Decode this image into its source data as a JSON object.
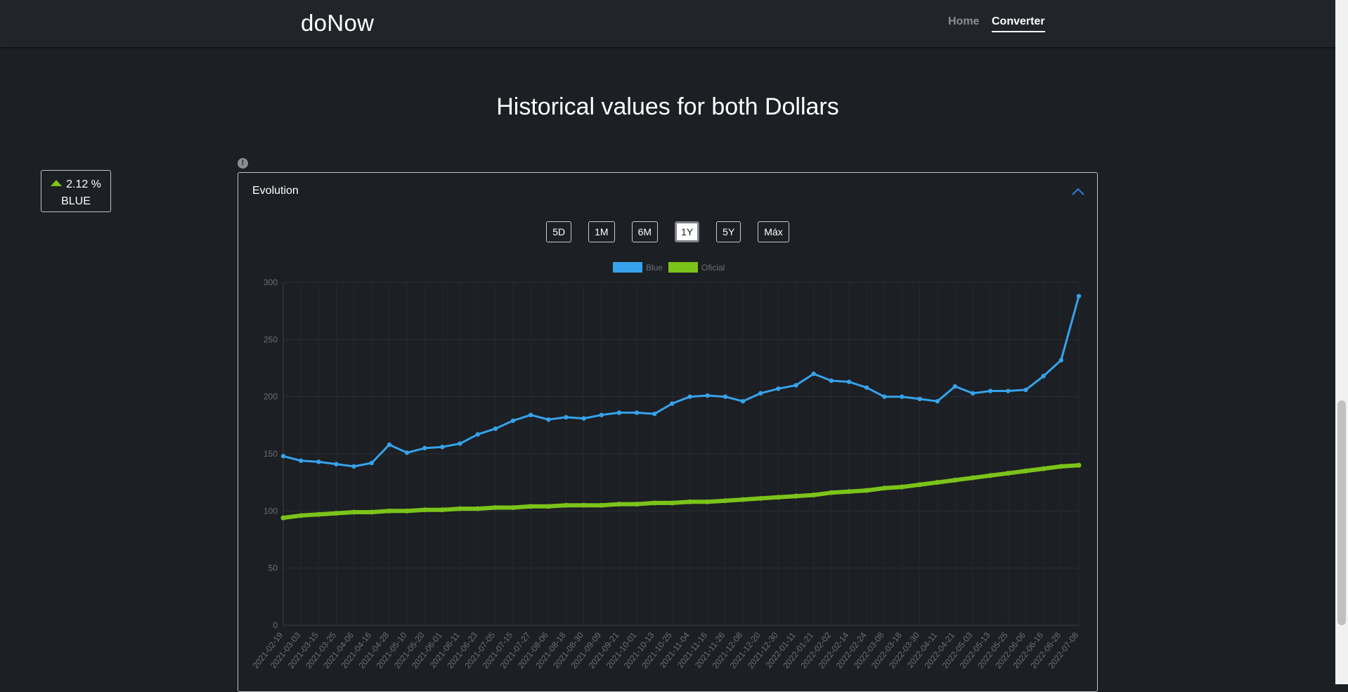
{
  "navbar": {
    "brand": "doNow",
    "links": [
      {
        "label": "Home"
      },
      {
        "label": "Converter",
        "active": true
      }
    ]
  },
  "page": {
    "title": "Historical values for both Dollars"
  },
  "change_card": {
    "percent": "2.12 %",
    "direction": "up",
    "label": "BLUE",
    "color": "#7cc31a"
  },
  "panel": {
    "title": "Evolution",
    "ranges": [
      "5D",
      "1M",
      "6M",
      "1Y",
      "5Y",
      "Máx"
    ],
    "active_range": "1Y"
  },
  "chart_data": {
    "type": "line",
    "legend_position": "top",
    "grid": true,
    "ylim": [
      0,
      300
    ],
    "yticks": [
      "0",
      "50",
      "100",
      "150",
      "200",
      "250",
      "300"
    ],
    "categories": [
      "2021-02-19",
      "2021-03-03",
      "2021-03-15",
      "2021-03-25",
      "2021-04-06",
      "2021-04-16",
      "2021-04-28",
      "2021-05-10",
      "2021-05-20",
      "2021-06-01",
      "2021-06-11",
      "2021-06-23",
      "2021-07-05",
      "2021-07-15",
      "2021-07-27",
      "2021-08-06",
      "2021-08-18",
      "2021-08-30",
      "2021-09-09",
      "2021-09-21",
      "2021-10-01",
      "2021-10-13",
      "2021-10-25",
      "2021-11-04",
      "2021-11-16",
      "2021-11-26",
      "2021-12-08",
      "2021-12-20",
      "2021-12-30",
      "2022-01-11",
      "2022-01-21",
      "2022-02-02",
      "2022-02-14",
      "2022-02-24",
      "2022-03-08",
      "2022-03-18",
      "2022-03-30",
      "2022-04-11",
      "2022-04-21",
      "2022-05-03",
      "2022-05-13",
      "2022-05-25",
      "2022-06-06",
      "2022-06-16",
      "2022-06-28",
      "2022-07-08"
    ],
    "series": [
      {
        "name": "Blue",
        "color": "#36a2eb",
        "values": [
          148,
          144,
          143,
          141,
          139,
          142,
          158,
          151,
          155,
          156,
          159,
          167,
          172,
          179,
          184,
          180,
          182,
          181,
          184,
          186,
          186,
          185,
          194,
          200,
          201,
          200,
          196,
          203,
          207,
          210,
          220,
          214,
          213,
          208,
          200,
          200,
          198,
          196,
          209,
          203,
          205,
          205,
          206,
          218,
          232,
          288
        ]
      },
      {
        "name": "Oficial",
        "color": "#7cc31a",
        "values": [
          94,
          96,
          97,
          98,
          99,
          99,
          100,
          100,
          101,
          101,
          102,
          102,
          103,
          103,
          104,
          104,
          105,
          105,
          105,
          106,
          106,
          107,
          107,
          108,
          108,
          109,
          110,
          111,
          112,
          113,
          114,
          116,
          117,
          118,
          120,
          121,
          123,
          125,
          127,
          129,
          131,
          133,
          135,
          137,
          139,
          140
        ]
      }
    ]
  }
}
